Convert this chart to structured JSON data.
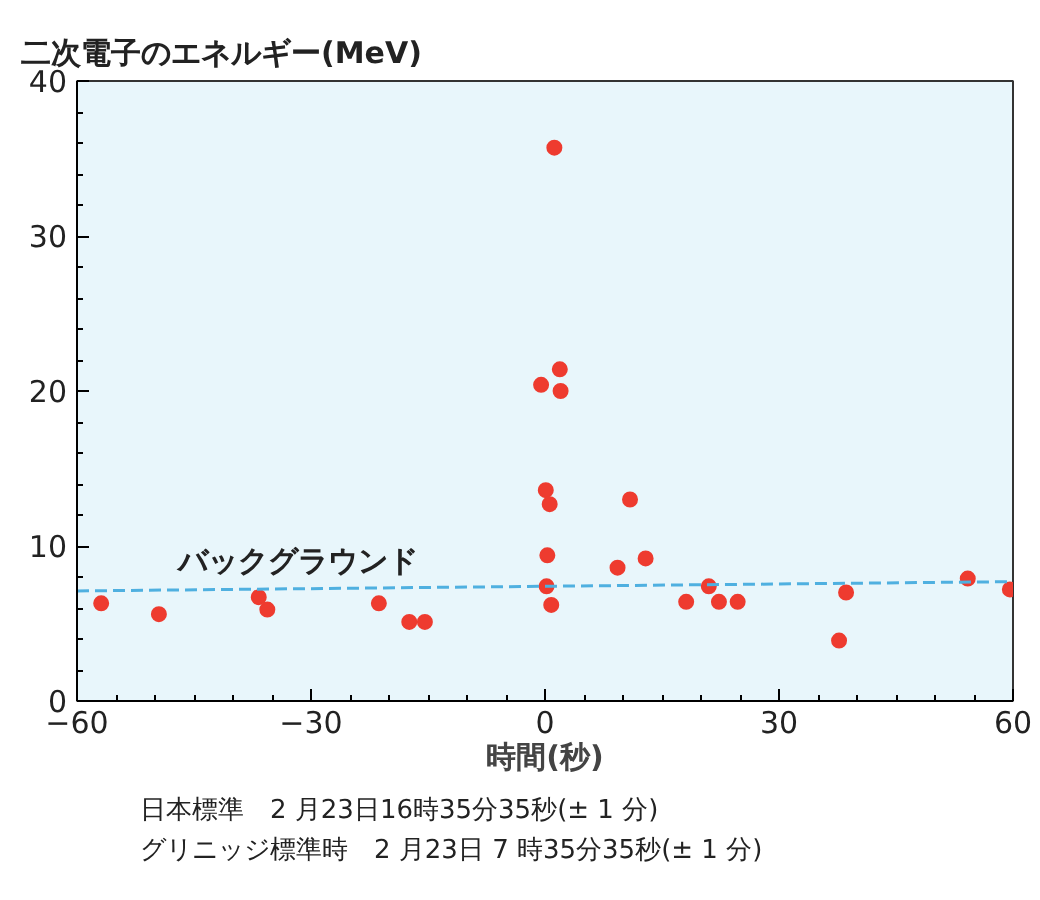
{
  "chart_data": {
    "type": "scatter",
    "ylabel": "二次電子のエネルギー(MeV)",
    "xlabel": "時間(秒)",
    "annotations": [
      "日本標準　2 月23日16時35分35秒(± 1 分)",
      "グリニッジ標準時　2 月23日 7 時35分35秒(± 1 分)"
    ],
    "x": [
      -56.9,
      -49.5,
      -36.7,
      -35.6,
      -21.3,
      -17.4,
      -15.4,
      -0.5,
      1.2,
      0.1,
      0.6,
      0.3,
      0.2,
      0.8,
      1.9,
      2.0,
      9.3,
      10.9,
      12.9,
      18.1,
      21.0,
      22.3,
      24.7,
      37.7,
      38.6,
      54.2,
      59.6
    ],
    "series": [
      {
        "color": "#ee3b2f",
        "values": [
          6.3,
          5.6,
          6.7,
          5.9,
          6.3,
          5.1,
          5.1,
          20.4,
          35.7,
          13.6,
          12.7,
          9.4,
          7.4,
          6.2,
          21.4,
          20.0,
          8.6,
          13.0,
          9.2,
          6.4,
          7.4,
          6.4,
          6.4,
          3.9,
          7.0,
          7.9,
          7.2
        ]
      },
      {
        "type": "line",
        "name": "バックグラウンド",
        "color": "#4fb0e0",
        "line_style": "dashed",
        "marker": "none",
        "x": [
          -60,
          60
        ],
        "values": [
          7.1,
          7.7
        ]
      }
    ],
    "xlim": [
      -60,
      60
    ],
    "ylim": [
      0,
      40
    ],
    "xticks": [
      {
        "value": -60,
        "label": "−60"
      },
      {
        "value": -30,
        "label": "−30"
      },
      0,
      30,
      60
    ],
    "yticks": [
      0,
      10,
      20,
      30,
      40
    ],
    "marker": "circle",
    "grid": false,
    "legend": false
  }
}
